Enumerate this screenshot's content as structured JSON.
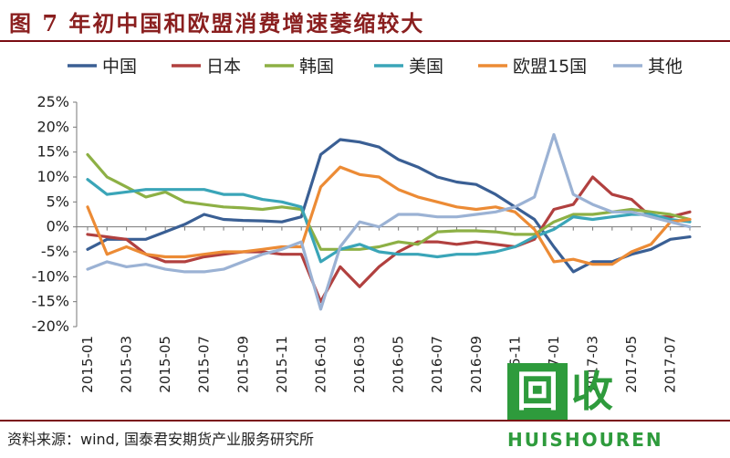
{
  "figure": {
    "title": "图 7   年初中国和欧盟消费增速萎缩较大",
    "source": "资料来源：wind, 国泰君安期货产业服务研究所"
  },
  "watermark": {
    "logo_char1": "回",
    "logo_char2": "收",
    "latin": "HUISHOUREN"
  },
  "chart_data": {
    "type": "line",
    "title": "",
    "xlabel": "",
    "ylabel": "",
    "ylim": [
      -20,
      25
    ],
    "y_ticks": [
      -20,
      -15,
      -10,
      -5,
      0,
      5,
      10,
      15,
      20,
      25
    ],
    "y_tick_labels": [
      "-20%",
      "-15%",
      "-10%",
      "-5%",
      "0%",
      "5%",
      "10%",
      "15%",
      "20%",
      "25%"
    ],
    "x_tick_labels": [
      "2015-01",
      "2015-03",
      "2015-05",
      "2015-07",
      "2015-09",
      "2015-11",
      "2016-01",
      "2016-03",
      "2016-05",
      "2016-07",
      "2016-09",
      "2016-11",
      "2017-01",
      "2017-03",
      "2017-05",
      "2017-07"
    ],
    "x_tick_every": 2,
    "legend_position": "top",
    "grid": false,
    "x": [
      "2015-01",
      "2015-02",
      "2015-03",
      "2015-04",
      "2015-05",
      "2015-06",
      "2015-07",
      "2015-08",
      "2015-09",
      "2015-10",
      "2015-11",
      "2015-12",
      "2016-01",
      "2016-02",
      "2016-03",
      "2016-04",
      "2016-05",
      "2016-06",
      "2016-07",
      "2016-08",
      "2016-09",
      "2016-10",
      "2016-11",
      "2016-12",
      "2017-01",
      "2017-02",
      "2017-03",
      "2017-04",
      "2017-05",
      "2017-06",
      "2017-07",
      "2017-08"
    ],
    "series": [
      {
        "name": "中国",
        "color": "#3a5f94",
        "values": [
          -4.5,
          -2.5,
          -2.5,
          -2.5,
          -1,
          0.5,
          2.5,
          1.5,
          1.3,
          1.2,
          1,
          2,
          14.5,
          17.5,
          17,
          16,
          13.5,
          12,
          10,
          9,
          8.5,
          6.5,
          4,
          1.5,
          -4,
          -9,
          -7,
          -7,
          -5.5,
          -4.5,
          -2.5,
          -2
        ]
      },
      {
        "name": "日本",
        "color": "#b1403f",
        "values": [
          -1.5,
          -2,
          -2.5,
          -5.5,
          -7,
          -7,
          -6,
          -5.5,
          -5,
          -5,
          -5.5,
          -5.5,
          -15,
          -8,
          -12,
          -8,
          -5,
          -3,
          -3,
          -3.5,
          -3,
          -3.5,
          -4,
          -2.5,
          3.5,
          4.5,
          10,
          6.5,
          5.5,
          2,
          2,
          3
        ]
      },
      {
        "name": "韩国",
        "color": "#8db045",
        "values": [
          14.5,
          10,
          8,
          6,
          7,
          5,
          4.5,
          4,
          3.8,
          3.5,
          4,
          3.5,
          -4.5,
          -4.5,
          -4.5,
          -4,
          -3,
          -3.5,
          -1,
          -0.8,
          -0.8,
          -1,
          -1.5,
          -1.5,
          1,
          2.5,
          2.5,
          3,
          3.5,
          3,
          2.5,
          1.5
        ]
      },
      {
        "name": "美国",
        "color": "#3aa5b8",
        "values": [
          9.5,
          6.5,
          7,
          7.5,
          7.5,
          7.5,
          7.5,
          6.5,
          6.5,
          5.5,
          5,
          4,
          -7,
          -4.5,
          -3.5,
          -5,
          -5.5,
          -5.5,
          -6,
          -5.5,
          -5.5,
          -5,
          -4,
          -2,
          -0.5,
          2,
          1.5,
          2,
          2.5,
          2.5,
          1.5,
          1
        ]
      },
      {
        "name": "欧盟15国",
        "color": "#ec8b35",
        "values": [
          4,
          -5.5,
          -4,
          -5.5,
          -6,
          -6,
          -5.5,
          -5,
          -5,
          -4.5,
          -4,
          -4,
          8,
          12,
          10.5,
          10,
          7.5,
          6,
          5,
          4,
          3.5,
          4,
          3,
          -0.5,
          -7,
          -6.5,
          -7.5,
          -7.5,
          -5,
          -3.5,
          1,
          1.5
        ]
      },
      {
        "name": "其他",
        "color": "#9bb2d4",
        "values": [
          -8.5,
          -7,
          -8,
          -7.5,
          -8.5,
          -9,
          -9,
          -8.5,
          -7,
          -5.5,
          -4.5,
          -3,
          -16.5,
          -4,
          1,
          0,
          2.5,
          2.5,
          2,
          2,
          2.5,
          3,
          4,
          6,
          18.5,
          6.5,
          4.5,
          3,
          3,
          2,
          1,
          0
        ]
      }
    ]
  }
}
